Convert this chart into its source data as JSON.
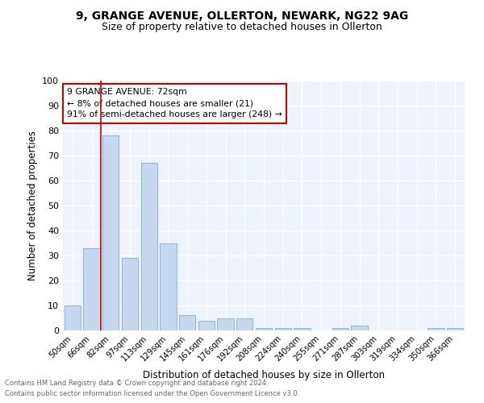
{
  "title1": "9, GRANGE AVENUE, OLLERTON, NEWARK, NG22 9AG",
  "title2": "Size of property relative to detached houses in Ollerton",
  "xlabel": "Distribution of detached houses by size in Ollerton",
  "ylabel": "Number of detached properties",
  "categories": [
    "50sqm",
    "66sqm",
    "82sqm",
    "97sqm",
    "113sqm",
    "129sqm",
    "145sqm",
    "161sqm",
    "176sqm",
    "192sqm",
    "208sqm",
    "224sqm",
    "240sqm",
    "255sqm",
    "271sqm",
    "287sqm",
    "303sqm",
    "319sqm",
    "334sqm",
    "350sqm",
    "366sqm"
  ],
  "values": [
    10,
    33,
    78,
    29,
    67,
    35,
    6,
    4,
    5,
    5,
    1,
    1,
    1,
    0,
    1,
    2,
    0,
    0,
    0,
    1,
    1
  ],
  "bar_color": "#c5d8f0",
  "bar_edge_color": "#8ab4d8",
  "vline_x": 1.47,
  "vline_color": "#cc0000",
  "annotation_text": "9 GRANGE AVENUE: 72sqm\n← 8% of detached houses are smaller (21)\n91% of semi-detached houses are larger (248) →",
  "annotation_box_color": "#ffffff",
  "annotation_box_edge": "#cc0000",
  "ylim": [
    0,
    100
  ],
  "yticks": [
    0,
    10,
    20,
    30,
    40,
    50,
    60,
    70,
    80,
    90,
    100
  ],
  "background_color": "#eef2fb",
  "footer1": "Contains HM Land Registry data © Crown copyright and database right 2024.",
  "footer2": "Contains public sector information licensed under the Open Government Licence v3.0."
}
